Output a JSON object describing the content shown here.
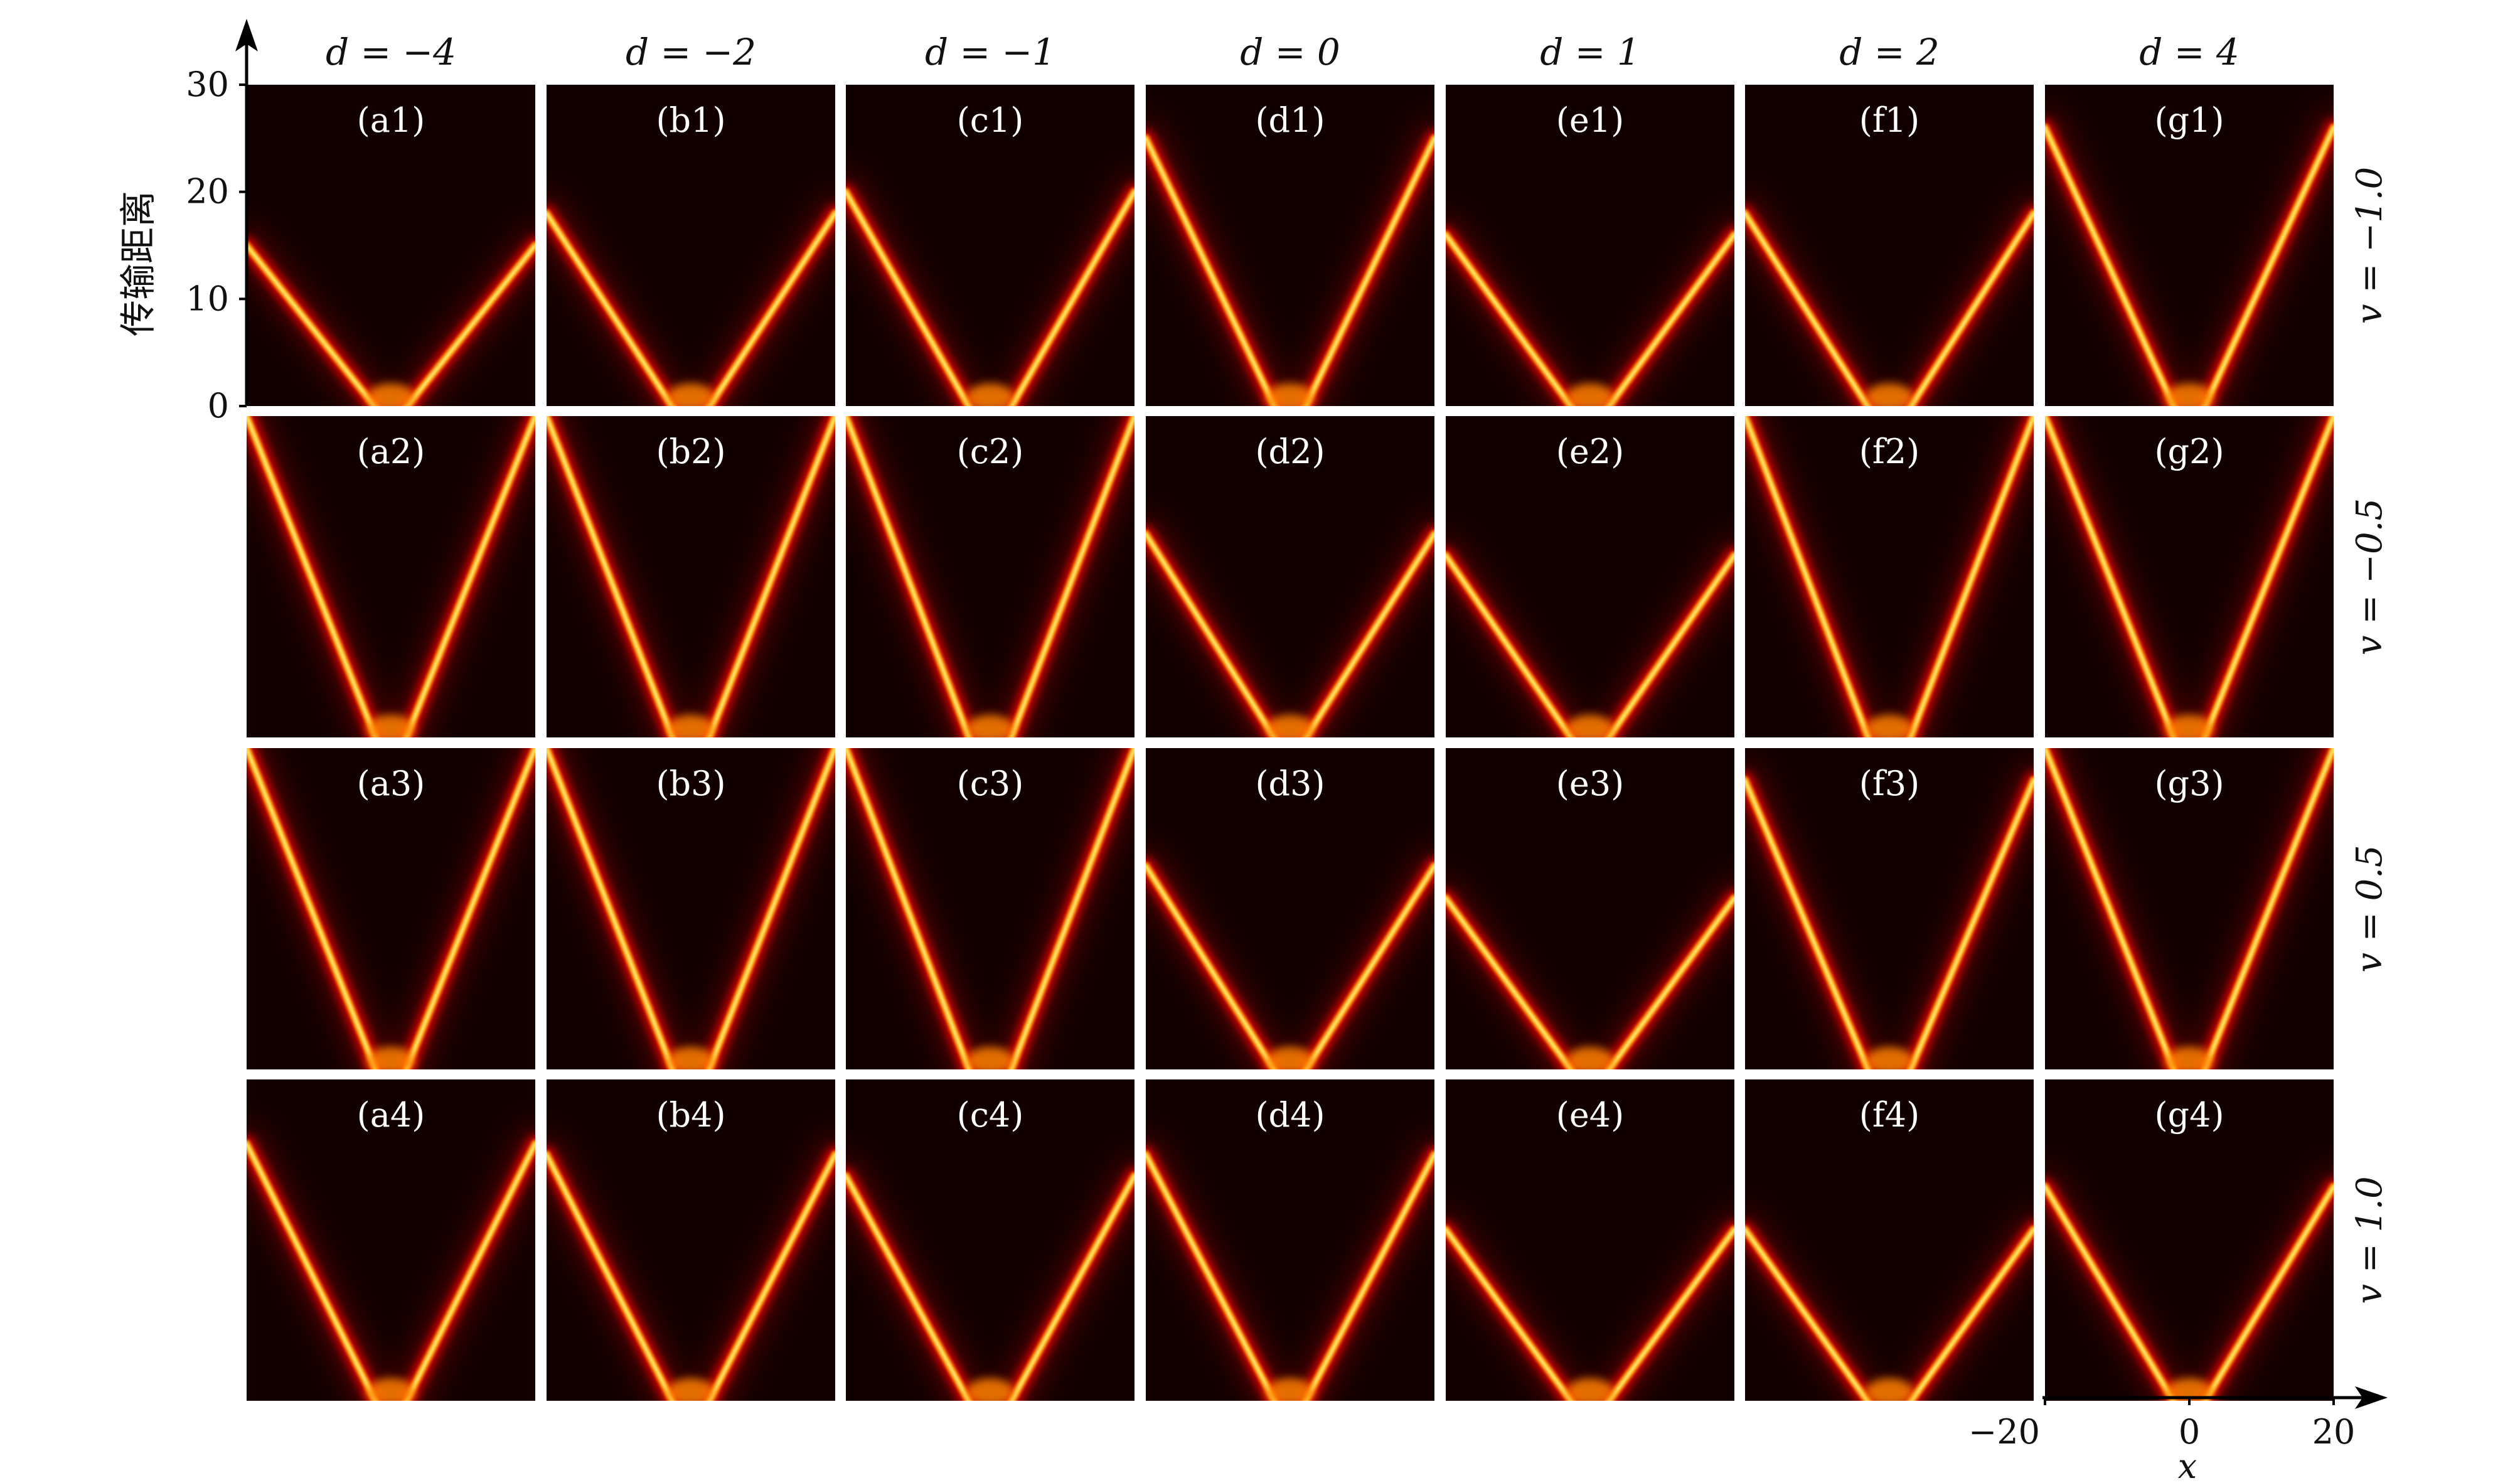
{
  "chart_data": {
    "type": "heatmap",
    "ylabel": "传输距离",
    "xlabel": "x",
    "xlim": [
      -20,
      20
    ],
    "ylim": [
      0,
      30
    ],
    "x_ticks": [
      "−20",
      "0",
      "20"
    ],
    "y_ticks": [
      "0",
      "10",
      "20",
      "30"
    ],
    "column_labels": [
      "d = −4",
      "d = −2",
      "d = −1",
      "d = 0",
      "d = 1",
      "d = 2",
      "d = 4"
    ],
    "row_labels": [
      "v = −1.0",
      "v = −0.5",
      "v = 0.5",
      "v = 1.0"
    ],
    "panels": [
      [
        "(a1)",
        "(b1)",
        "(c1)",
        "(d1)",
        "(e1)",
        "(f1)",
        "(g1)"
      ],
      [
        "(a2)",
        "(b2)",
        "(c2)",
        "(d2)",
        "(e2)",
        "(f2)",
        "(g2)"
      ],
      [
        "(a3)",
        "(b3)",
        "(c3)",
        "(d3)",
        "(e3)",
        "(f3)",
        "(g3)"
      ],
      [
        "(a4)",
        "(b4)",
        "(c4)",
        "(d4)",
        "(e4)",
        "(f4)",
        "(g4)"
      ]
    ],
    "beam_height_at_edge": [
      [
        15,
        18,
        20,
        25,
        16,
        18,
        26
      ],
      [
        30,
        30,
        30,
        19,
        17,
        30,
        30
      ],
      [
        30,
        30,
        30,
        19,
        16,
        27,
        30
      ],
      [
        24,
        23,
        21,
        23,
        16,
        16,
        20
      ]
    ],
    "colormap": [
      "#120000",
      "#cc0000",
      "#ff8000",
      "#ffff80"
    ]
  }
}
